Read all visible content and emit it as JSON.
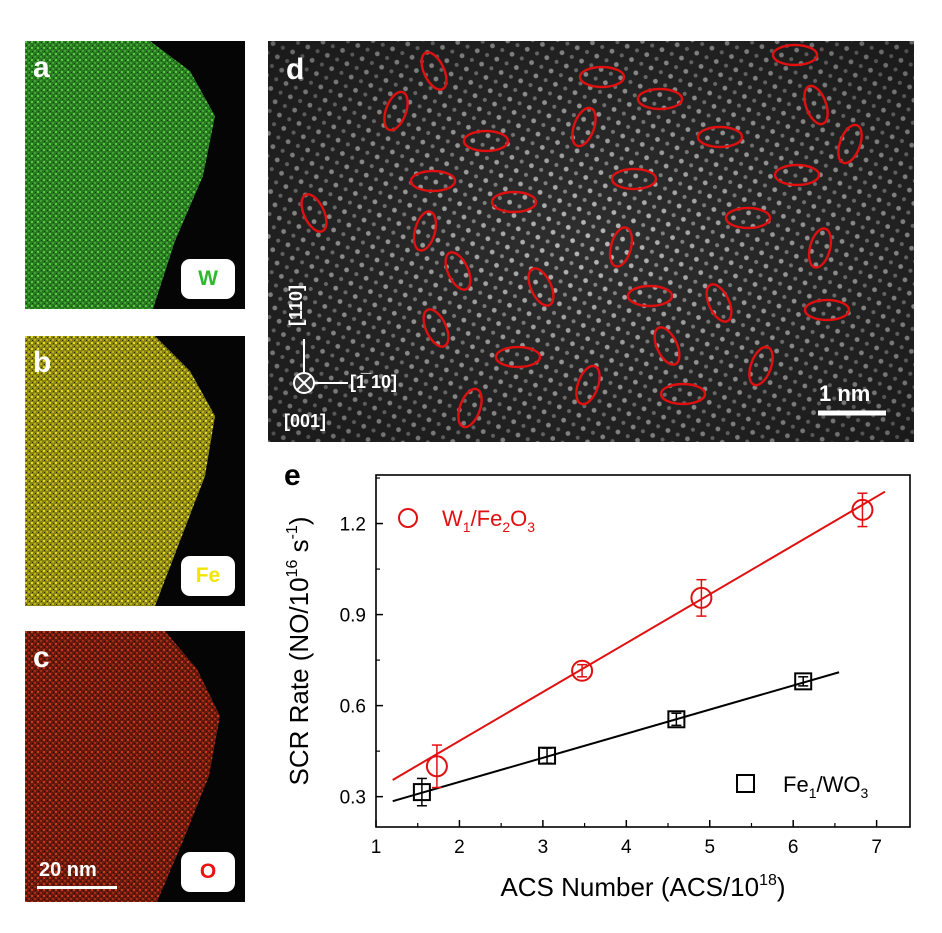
{
  "figure": {
    "panels": {
      "a": {
        "label": "a",
        "element": "W",
        "element_color": "#2eb82e",
        "map_color": "#3aa832"
      },
      "b": {
        "label": "b",
        "element": "Fe",
        "element_color": "#f2e600",
        "map_color": "#c9c020"
      },
      "c": {
        "label": "c",
        "element": "O",
        "element_color": "#ee1111",
        "map_color": "#b83218",
        "scalebar": "20 nm"
      },
      "d": {
        "label": "d",
        "scalebar": "1 nm",
        "axis_up": "[110]",
        "axis_right": "[1̅",
        "axis_right_full": "[1̅ 10]",
        "axis_out": "[001]",
        "ellipse_color": "#e01010"
      },
      "e": {
        "label": "e"
      }
    }
  },
  "chart_data": {
    "type": "scatter",
    "xlabel": "ACS Number (ACS/10",
    "xlabel_sup": "18",
    "xlabel_end": ")",
    "ylabel": "SCR Rate (NO/10",
    "ylabel_sup1": "16",
    "ylabel_mid": " s",
    "ylabel_sup2": "-1",
    "ylabel_end": ")",
    "xlim": [
      1,
      7.4
    ],
    "ylim": [
      0.2,
      1.36
    ],
    "xticks": [
      1,
      2,
      3,
      4,
      5,
      6,
      7
    ],
    "yticks": [
      0.3,
      0.6,
      0.9,
      1.2
    ],
    "ytick_labels": [
      "0.3",
      "0.6",
      "0.9",
      "1.2"
    ],
    "series": [
      {
        "name": "W1/Fe2O3",
        "legend_base": "W",
        "legend_sub1": "1",
        "legend_mid": "/Fe",
        "legend_sub2": "2",
        "legend_mid2": "O",
        "legend_sub3": "3",
        "marker": "circle",
        "color": "#e01010",
        "x": [
          1.73,
          3.47,
          4.9,
          6.83
        ],
        "y": [
          0.4,
          0.715,
          0.955,
          1.245
        ],
        "err": [
          0.07,
          0.02,
          0.06,
          0.055
        ],
        "fit": {
          "x0": 1.2,
          "y0": 0.355,
          "x1": 7.1,
          "y1": 1.305
        }
      },
      {
        "name": "Fe1/WO3",
        "legend_base": "Fe",
        "legend_sub1": "1",
        "legend_mid": "/WO",
        "legend_sub2": "3",
        "marker": "square",
        "color": "#000000",
        "x": [
          1.55,
          3.05,
          4.6,
          6.12
        ],
        "y": [
          0.315,
          0.435,
          0.555,
          0.68
        ],
        "err": [
          0.045,
          0.025,
          0.02,
          0.015
        ],
        "fit": {
          "x0": 1.2,
          "y0": 0.285,
          "x1": 6.55,
          "y1": 0.71
        }
      }
    ]
  }
}
